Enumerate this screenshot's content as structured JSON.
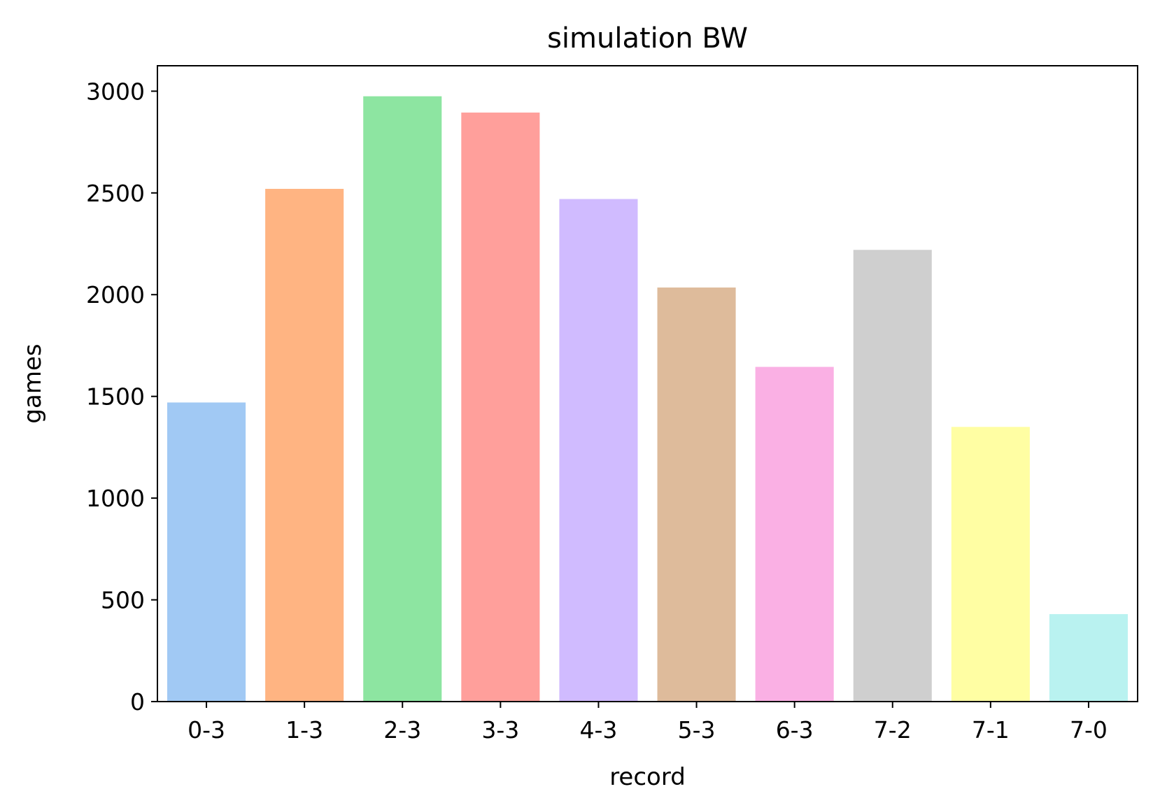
{
  "chart_data": {
    "type": "bar",
    "title": "simulation BW",
    "xlabel": "record",
    "ylabel": "games",
    "categories": [
      "0-3",
      "1-3",
      "2-3",
      "3-3",
      "4-3",
      "5-3",
      "6-3",
      "7-2",
      "7-1",
      "7-0"
    ],
    "values": [
      1470,
      2520,
      2975,
      2895,
      2470,
      2035,
      1645,
      2220,
      1350,
      430
    ],
    "colors": [
      "#a1c9f4",
      "#ffb482",
      "#8de5a1",
      "#ff9f9b",
      "#d0bbff",
      "#debb9b",
      "#fab0e4",
      "#cfcfcf",
      "#fffea3",
      "#b9f2f0"
    ],
    "ylim": [
      0,
      3125
    ],
    "yticks": [
      0,
      500,
      1000,
      1500,
      2000,
      2500,
      3000
    ],
    "grid": false,
    "legend": "none"
  }
}
